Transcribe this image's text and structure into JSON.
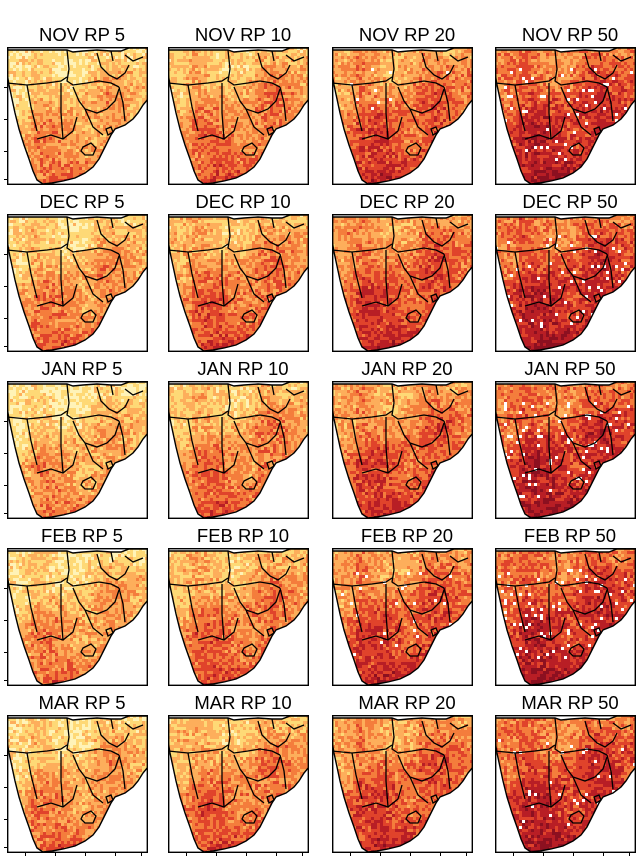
{
  "panels": [
    {
      "title": "NOV RP 5",
      "intensity": 0.4,
      "missing": 0
    },
    {
      "title": "NOV RP 10",
      "intensity": 0.52,
      "missing": 0
    },
    {
      "title": "NOV RP 20",
      "intensity": 0.66,
      "missing": 0.01
    },
    {
      "title": "NOV RP 50",
      "intensity": 0.82,
      "missing": 0.04
    },
    {
      "title": "DEC RP 5",
      "intensity": 0.44,
      "missing": 0
    },
    {
      "title": "DEC RP 10",
      "intensity": 0.56,
      "missing": 0
    },
    {
      "title": "DEC RP 20",
      "intensity": 0.7,
      "missing": 0
    },
    {
      "title": "DEC RP 50",
      "intensity": 0.84,
      "missing": 0.04
    },
    {
      "title": "JAN RP 5",
      "intensity": 0.36,
      "missing": 0
    },
    {
      "title": "JAN RP 10",
      "intensity": 0.5,
      "missing": 0
    },
    {
      "title": "JAN RP 20",
      "intensity": 0.66,
      "missing": 0
    },
    {
      "title": "JAN RP 50",
      "intensity": 0.84,
      "missing": 0.05
    },
    {
      "title": "FEB RP 5",
      "intensity": 0.4,
      "missing": 0
    },
    {
      "title": "FEB RP 10",
      "intensity": 0.54,
      "missing": 0
    },
    {
      "title": "FEB RP 20",
      "intensity": 0.7,
      "missing": 0.02
    },
    {
      "title": "FEB RP 50",
      "intensity": 0.84,
      "missing": 0.05
    },
    {
      "title": "MAR RP 5",
      "intensity": 0.42,
      "missing": 0
    },
    {
      "title": "MAR RP 10",
      "intensity": 0.54,
      "missing": 0
    },
    {
      "title": "MAR RP 20",
      "intensity": 0.68,
      "missing": 0
    },
    {
      "title": "MAR RP 50",
      "intensity": 0.82,
      "missing": 0.03
    }
  ],
  "colors": {
    "ramp": [
      "#fff3b8",
      "#fed976",
      "#fdae5b",
      "#f47d3c",
      "#e0432b",
      "#b81e25",
      "#8c1020"
    ],
    "ocean": "#ffffff",
    "missing": "#ffffff",
    "boundary": "#000000"
  }
}
